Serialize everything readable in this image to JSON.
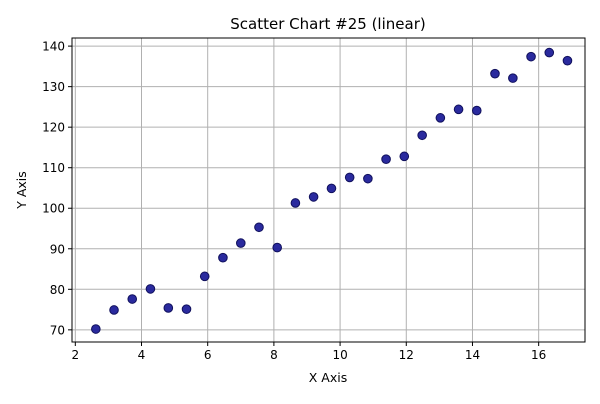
{
  "chart_data": {
    "type": "scatter",
    "title": "Scatter Chart #25 (linear)",
    "xlabel": "X Axis",
    "ylabel": "Y Axis",
    "xlim": [
      1.9,
      17.4
    ],
    "ylim": [
      67,
      142
    ],
    "xticks": [
      2,
      4,
      6,
      8,
      10,
      12,
      14,
      16
    ],
    "yticks": [
      70,
      80,
      90,
      100,
      110,
      120,
      130,
      140
    ],
    "grid": true,
    "marker_color": "#1f1f99",
    "marker_edge_color": "#10105c",
    "points": [
      {
        "x": 2.62,
        "y": 70.2
      },
      {
        "x": 3.17,
        "y": 74.9
      },
      {
        "x": 3.72,
        "y": 77.6
      },
      {
        "x": 4.27,
        "y": 80.1
      },
      {
        "x": 4.81,
        "y": 75.4
      },
      {
        "x": 5.36,
        "y": 75.1
      },
      {
        "x": 5.91,
        "y": 83.2
      },
      {
        "x": 6.46,
        "y": 87.8
      },
      {
        "x": 7.0,
        "y": 91.4
      },
      {
        "x": 7.55,
        "y": 95.3
      },
      {
        "x": 8.1,
        "y": 90.3
      },
      {
        "x": 8.65,
        "y": 101.3
      },
      {
        "x": 9.2,
        "y": 102.8
      },
      {
        "x": 9.74,
        "y": 104.9
      },
      {
        "x": 10.29,
        "y": 107.6
      },
      {
        "x": 10.84,
        "y": 107.3
      },
      {
        "x": 11.39,
        "y": 112.1
      },
      {
        "x": 11.94,
        "y": 112.8
      },
      {
        "x": 12.48,
        "y": 118.0
      },
      {
        "x": 13.03,
        "y": 122.3
      },
      {
        "x": 13.58,
        "y": 124.4
      },
      {
        "x": 14.13,
        "y": 124.1
      },
      {
        "x": 14.68,
        "y": 133.2
      },
      {
        "x": 15.22,
        "y": 132.1
      },
      {
        "x": 15.77,
        "y": 137.4
      },
      {
        "x": 16.32,
        "y": 138.4
      },
      {
        "x": 16.87,
        "y": 136.4
      }
    ]
  }
}
